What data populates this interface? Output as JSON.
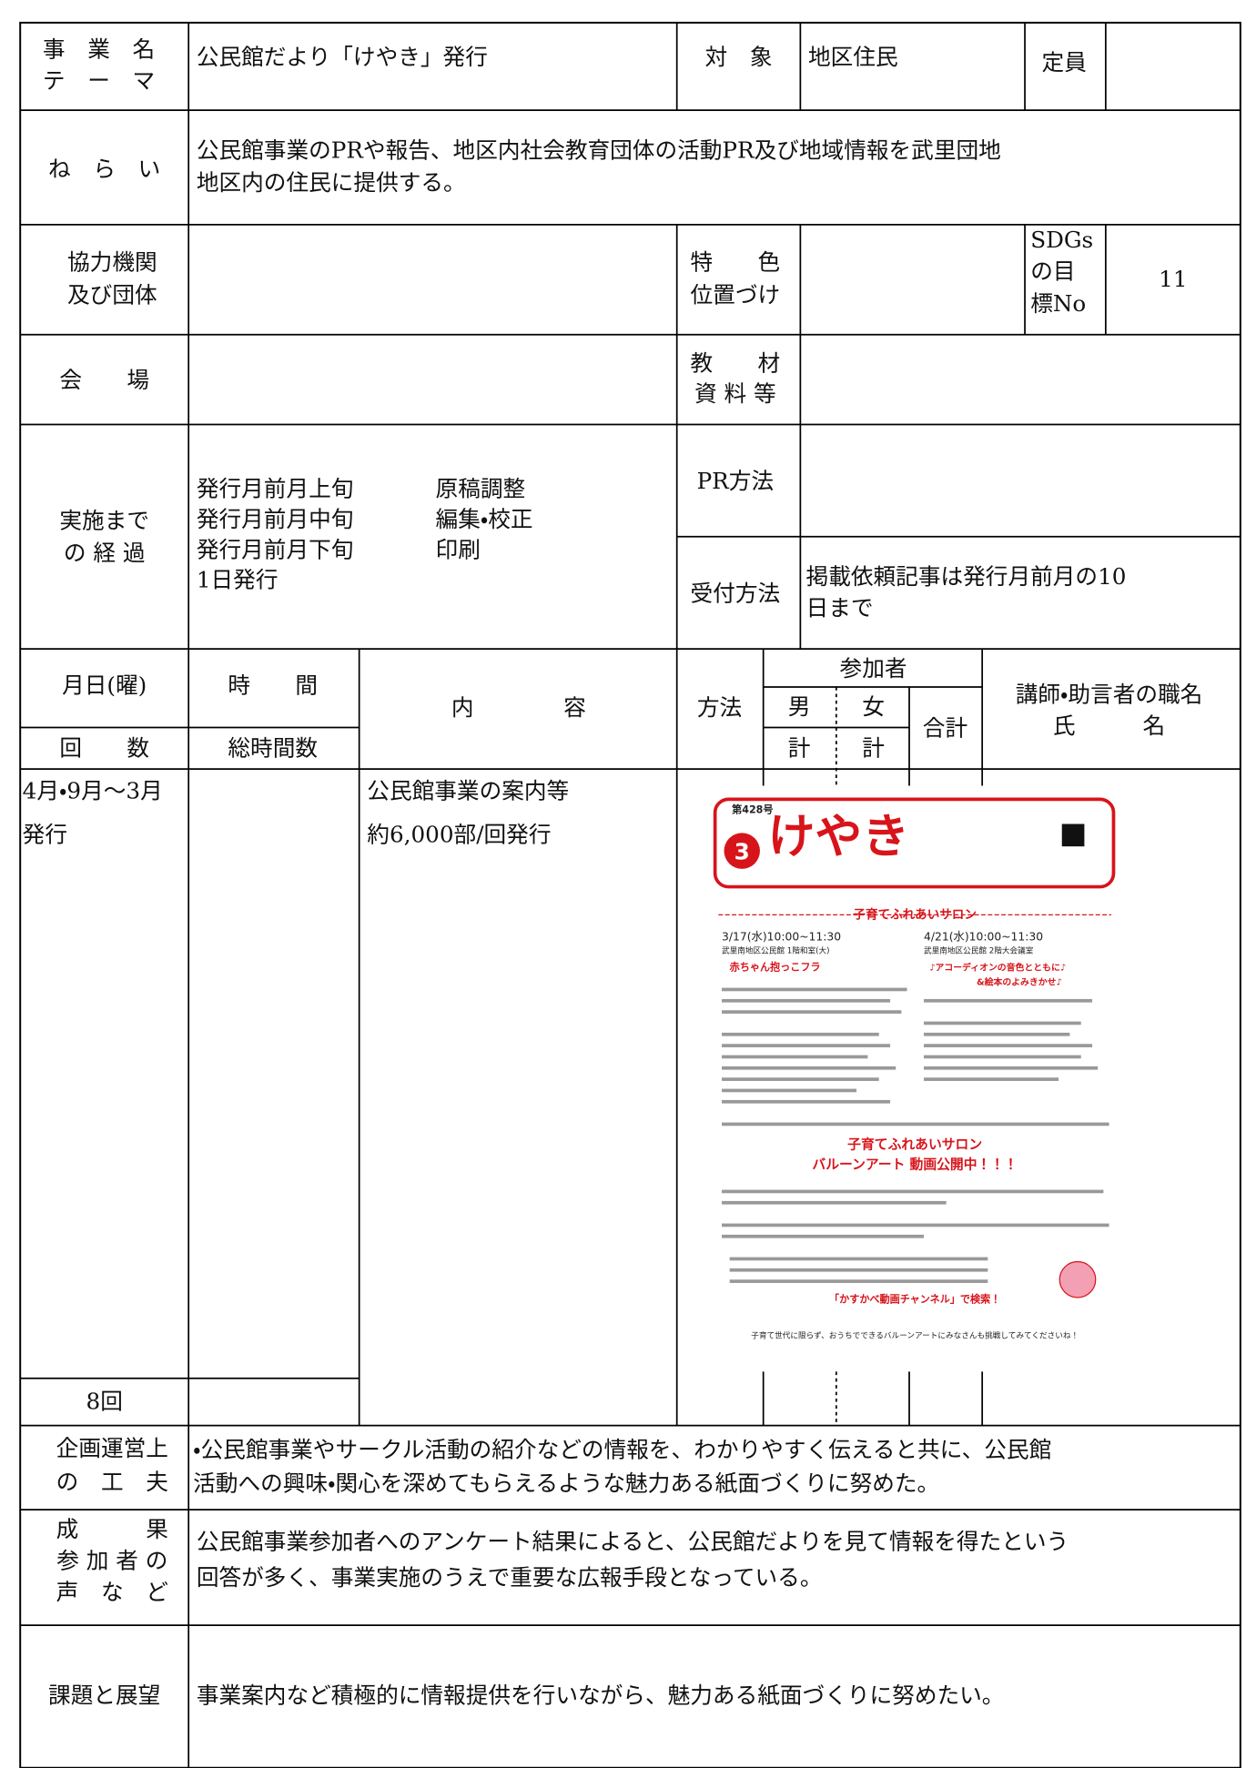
{
  "row1": {
    "label": [
      "事　業　名",
      "テ　ー　マ"
    ],
    "value": "公民館だより「けやき」発行",
    "target_label": "対　象",
    "target": "地区住民",
    "capacity_label": "定員"
  },
  "aim": {
    "label": "ね　ら　い",
    "lines": [
      "公民館事業のPRや報告、地区内社会教育団体の活動PR及び地域情報を武里団地",
      "地区内の住民に提供する。"
    ]
  },
  "partners": {
    "label": [
      "協力機関",
      "及び団体"
    ],
    "feature_label": [
      "特　　色",
      "位置づけ"
    ],
    "sdgs_label": [
      "SDGs",
      "の目",
      "標No"
    ],
    "sdgs": "11"
  },
  "venue": {
    "label": "会　　場",
    "materials_label": [
      "教　　材",
      "資 料 等"
    ]
  },
  "process": {
    "label": [
      "実施まで",
      "の 経 過"
    ],
    "schedule": [
      [
        "発行月前月上旬",
        "原稿調整"
      ],
      [
        "発行月前月中旬",
        "編集・校正"
      ],
      [
        "発行月前月下旬",
        "印刷"
      ],
      [
        "1日発行"
      ]
    ],
    "pr_label": "PR方法",
    "reception_label": "受付方法",
    "reception": [
      "掲載依頼記事は発行月前月の10",
      "日まで"
    ]
  },
  "header": {
    "date": "月日(曜)",
    "time": "時　　間",
    "content": "内　　　　容",
    "method": "方法",
    "participants": "参加者",
    "male": "男",
    "female": "女",
    "total": "合計",
    "lecturer": "講師・助言者の職名",
    "name": "氏　　　名",
    "count": "回　　数",
    "total_hours": "総時間数",
    "male_sum": "計",
    "female_sum": "計"
  },
  "body": {
    "date": [
      "4月・9月～3月",
      "発行"
    ],
    "content": [
      "公民館事業の案内等",
      "約6,000部/回発行"
    ],
    "count": "8回"
  },
  "newsletter": {
    "issue": "第428号",
    "title": "けやき",
    "number": "3",
    "salon": "子育てふれあいサロン",
    "event1": [
      "3/17(水)10:00~11:30",
      "武里南地区公民館 1階和室(大)",
      "赤ちゃん抱っこフラ"
    ],
    "event2": [
      "4/21(水)10:00~11:30",
      "武里南地区公民館 2階大会議室",
      "♪アコーディオンの音色とともに♪",
      "&絵本のよみきかせ♪"
    ],
    "salon2": "子育てふれあいサロン",
    "balloon": "バルーンアート 動画公開中！！！",
    "search": "「かすかべ動画チャンネル」で検索！",
    "footer": "子育て世代に限らず、おうちでできるバルーンアートにみなさんも挑戦してみてくださいね！"
  },
  "planning": {
    "label": [
      "企画運営上",
      "の　工　夫"
    ],
    "lines": [
      "・公民館事業やサークル活動の紹介などの情報を、わかりやすく伝えると共に、公民館",
      "活動への興味・関心を深めてもらえるような魅力ある紙面づくりに努めた。"
    ]
  },
  "results": {
    "label": [
      "成　　　果",
      "参 加 者 の",
      "声　な　ど"
    ],
    "lines": [
      "公民館事業参加者へのアンケート結果によると、公民館だよりを見て情報を得たという",
      "回答が多く、事業実施のうえで重要な広報手段となっている。"
    ]
  },
  "issues": {
    "label": "課題と展望",
    "text": "事業案内など積極的に情報提供を行いながら、魅力ある紙面づくりに努めたい。"
  }
}
